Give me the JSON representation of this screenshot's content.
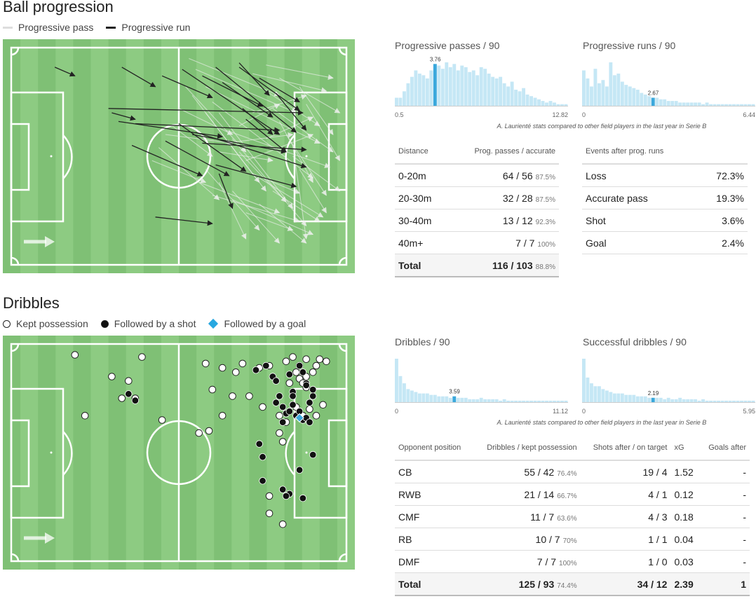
{
  "progression": {
    "title": "Ball progression",
    "legend": [
      {
        "label": "Progressive pass",
        "color": "#dddddd"
      },
      {
        "label": "Progressive run",
        "color": "#222222"
      }
    ]
  },
  "dribbles": {
    "title": "Dribbles",
    "legend": [
      {
        "label": "Kept possession",
        "marker": "white-circle"
      },
      {
        "label": "Followed by a shot",
        "marker": "black-circle"
      },
      {
        "label": "Followed by a goal",
        "marker": "blue-diamond",
        "color": "#27a7e0"
      }
    ]
  },
  "colors": {
    "pitch_light": "#8dcb82",
    "pitch_dark": "#7fc075",
    "hist_bar": "#c5e7f5",
    "hist_highlight": "#3ba8dc"
  },
  "hist_note": "A. Laurienté stats compared to other field players in the last year in Serie B",
  "pass_table": {
    "headers": [
      "Distance",
      "Prog. passes / accurate"
    ],
    "rows": [
      {
        "label": "0-20m",
        "value": "64 / 56",
        "pct": "87.5%"
      },
      {
        "label": "20-30m",
        "value": "32 / 28",
        "pct": "87.5%"
      },
      {
        "label": "30-40m",
        "value": "13 / 12",
        "pct": "92.3%"
      },
      {
        "label": "40m+",
        "value": "7 / 7",
        "pct": "100%"
      }
    ],
    "total": {
      "label": "Total",
      "value": "116 / 103",
      "pct": "88.8%"
    }
  },
  "runs_table": {
    "headers": [
      "Events after prog. runs",
      ""
    ],
    "rows": [
      {
        "label": "Loss",
        "value": "72.3%"
      },
      {
        "label": "Accurate pass",
        "value": "19.3%"
      },
      {
        "label": "Shot",
        "value": "3.6%"
      },
      {
        "label": "Goal",
        "value": "2.4%"
      }
    ]
  },
  "dribble_table": {
    "headers": [
      "Opponent position",
      "Dribbles / kept possession",
      "Shots after / on target",
      "xG",
      "Goals after"
    ],
    "rows": [
      {
        "pos": "CB",
        "drib": "55 / 42",
        "pct": "76.4%",
        "shots": "19 / 4",
        "xg": "1.52",
        "goals": "-"
      },
      {
        "pos": "RWB",
        "drib": "21 / 14",
        "pct": "66.7%",
        "shots": "4 / 1",
        "xg": "0.12",
        "goals": "-"
      },
      {
        "pos": "CMF",
        "drib": "11 / 7",
        "pct": "63.6%",
        "shots": "4 / 3",
        "xg": "0.18",
        "goals": "-"
      },
      {
        "pos": "RB",
        "drib": "10 / 7",
        "pct": "70%",
        "shots": "1 / 1",
        "xg": "0.04",
        "goals": "-"
      },
      {
        "pos": "DMF",
        "drib": "7 / 7",
        "pct": "100%",
        "shots": "1 / 0",
        "xg": "0.03",
        "goals": "-"
      }
    ],
    "total": {
      "pos": "Total",
      "drib": "125 / 93",
      "pct": "74.4%",
      "shots": "34 / 12",
      "xg": "2.39",
      "goals": "1"
    }
  },
  "chart_data": [
    {
      "type": "bar",
      "title": "Progressive passes / 90",
      "min": "0.5",
      "max": "12.82",
      "value": 3.76,
      "value_label": "3.76",
      "values": [
        5,
        5,
        9,
        14,
        18,
        22,
        20,
        19,
        17,
        22,
        26,
        25,
        23,
        27,
        24,
        26,
        22,
        25,
        24,
        21,
        22,
        19,
        24,
        23,
        20,
        18,
        17,
        18,
        14,
        12,
        15,
        10,
        9,
        11,
        7,
        6,
        5,
        4,
        3,
        2,
        3,
        2,
        1,
        1,
        1
      ],
      "highlight_index": 10
    },
    {
      "type": "bar",
      "title": "Progressive runs / 90",
      "min": "0",
      "max": "6.44",
      "value": 2.67,
      "value_label": "2.67",
      "values": [
        22,
        17,
        12,
        23,
        14,
        16,
        12,
        27,
        19,
        20,
        15,
        13,
        12,
        11,
        10,
        8,
        7,
        6,
        5,
        5,
        4,
        4,
        3,
        3,
        3,
        2,
        2,
        2,
        2,
        2,
        2,
        1,
        2,
        1,
        1,
        1,
        1,
        1,
        1,
        1,
        1,
        1,
        1,
        1,
        1
      ],
      "highlight_index": 18
    },
    {
      "type": "bar",
      "title": "Dribbles / 90",
      "min": "0",
      "max": "11.12",
      "value": 3.59,
      "value_label": "3.59",
      "values": [
        30,
        18,
        13,
        9,
        8,
        7,
        6,
        6,
        6,
        5,
        5,
        4,
        4,
        4,
        3,
        4,
        3,
        3,
        3,
        2,
        2,
        2,
        3,
        2,
        2,
        2,
        2,
        1,
        2,
        1,
        1,
        1,
        1,
        1,
        1,
        1,
        1,
        1,
        1,
        1,
        1,
        1,
        1,
        1,
        1
      ],
      "highlight_index": 15
    },
    {
      "type": "bar",
      "title": "Successful dribbles / 90",
      "min": "0",
      "max": "5.95",
      "value": 2.19,
      "value_label": "2.19",
      "values": [
        30,
        17,
        13,
        11,
        11,
        9,
        8,
        7,
        6,
        6,
        6,
        5,
        5,
        5,
        4,
        4,
        4,
        3,
        3,
        3,
        3,
        2,
        3,
        2,
        2,
        3,
        2,
        2,
        2,
        2,
        1,
        2,
        1,
        1,
        1,
        1,
        1,
        1,
        1,
        1,
        1,
        1,
        1,
        1,
        1
      ],
      "highlight_index": 18
    },
    {
      "type": "scatter",
      "title": "Progressive passes and runs",
      "pitch_x_range": [
        0,
        100
      ],
      "pitch_y_range": [
        0,
        100
      ],
      "runs": [
        [
          13,
          9,
          19,
          13
        ],
        [
          33,
          9,
          43,
          18
        ],
        [
          45,
          13,
          60,
          23
        ],
        [
          51,
          10,
          80,
          40
        ],
        [
          57,
          13,
          75,
          27
        ],
        [
          61,
          9,
          85,
          39
        ],
        [
          68,
          9,
          86,
          29
        ],
        [
          30,
          30,
          37,
          33
        ],
        [
          29,
          28,
          87,
          30
        ],
        [
          32,
          34,
          63,
          41
        ],
        [
          37,
          35,
          80,
          38
        ],
        [
          36,
          45,
          57,
          59
        ],
        [
          46,
          43,
          65,
          59
        ],
        [
          50,
          35,
          70,
          57
        ],
        [
          54,
          40,
          82,
          48
        ],
        [
          55,
          39,
          88,
          55
        ],
        [
          57,
          44,
          88,
          47
        ],
        [
          61,
          54,
          85,
          64
        ],
        [
          62,
          58,
          66,
          74
        ],
        [
          43,
          78,
          60,
          81
        ],
        [
          68,
          7,
          77,
          22
        ],
        [
          63,
          16,
          78,
          32
        ],
        [
          69,
          28,
          78,
          40
        ],
        [
          70,
          33,
          82,
          48
        ],
        [
          74,
          14,
          86,
          25
        ],
        [
          79,
          21,
          88,
          38
        ]
      ],
      "passes": [
        [
          53,
          5,
          80,
          22
        ],
        [
          55,
          10,
          85,
          30
        ],
        [
          58,
          18,
          92,
          44
        ],
        [
          60,
          25,
          90,
          60
        ],
        [
          62,
          30,
          84,
          74
        ],
        [
          64,
          38,
          95,
          55
        ],
        [
          66,
          42,
          88,
          82
        ],
        [
          68,
          48,
          82,
          71
        ],
        [
          70,
          52,
          90,
          40
        ],
        [
          72,
          58,
          86,
          67
        ],
        [
          74,
          60,
          93,
          78
        ],
        [
          76,
          20,
          92,
          36
        ],
        [
          78,
          28,
          96,
          48
        ],
        [
          80,
          34,
          90,
          62
        ],
        [
          82,
          40,
          94,
          68
        ],
        [
          84,
          45,
          88,
          88
        ],
        [
          58,
          56,
          74,
          84
        ],
        [
          56,
          62,
          80,
          76
        ],
        [
          60,
          68,
          86,
          80
        ],
        [
          66,
          70,
          90,
          86
        ],
        [
          72,
          12,
          94,
          20
        ],
        [
          76,
          8,
          96,
          14
        ],
        [
          80,
          14,
          98,
          30
        ],
        [
          86,
          18,
          96,
          40
        ],
        [
          88,
          26,
          98,
          52
        ],
        [
          84,
          50,
          98,
          66
        ],
        [
          86,
          56,
          94,
          76
        ],
        [
          78,
          66,
          92,
          80
        ],
        [
          74,
          72,
          88,
          90
        ],
        [
          70,
          76,
          84,
          84
        ],
        [
          62,
          48,
          78,
          52
        ],
        [
          64,
          44,
          84,
          40
        ],
        [
          68,
          36,
          80,
          26
        ],
        [
          72,
          30,
          88,
          22
        ],
        [
          76,
          42,
          90,
          32
        ],
        [
          52,
          18,
          70,
          48
        ],
        [
          54,
          22,
          74,
          62
        ],
        [
          58,
          30,
          76,
          66
        ],
        [
          62,
          62,
          70,
          88
        ],
        [
          66,
          66,
          80,
          90
        ],
        [
          50,
          28,
          66,
          40
        ],
        [
          48,
          36,
          60,
          50
        ],
        [
          46,
          40,
          66,
          44
        ],
        [
          44,
          46,
          62,
          70
        ],
        [
          42,
          52,
          58,
          62
        ]
      ]
    },
    {
      "type": "scatter",
      "title": "Dribbles",
      "pitch_x_range": [
        0,
        100
      ],
      "pitch_y_range": [
        0,
        100
      ],
      "kept": [
        [
          19,
          5
        ],
        [
          39,
          6
        ],
        [
          30,
          15
        ],
        [
          35,
          17
        ],
        [
          33,
          25
        ],
        [
          37,
          25
        ],
        [
          22,
          33
        ],
        [
          45,
          35
        ],
        [
          58,
          9
        ],
        [
          63,
          11
        ],
        [
          69,
          9
        ],
        [
          67,
          13
        ],
        [
          60,
          21
        ],
        [
          66,
          24
        ],
        [
          71,
          24
        ],
        [
          63,
          33
        ],
        [
          56,
          41
        ],
        [
          59,
          40
        ],
        [
          74,
          11
        ],
        [
          77,
          10
        ],
        [
          82,
          8
        ],
        [
          84,
          6
        ],
        [
          88,
          7
        ],
        [
          92,
          7
        ],
        [
          94,
          8
        ],
        [
          86,
          10
        ],
        [
          85,
          13
        ],
        [
          88,
          15
        ],
        [
          90,
          13
        ],
        [
          91,
          10
        ],
        [
          83,
          18
        ],
        [
          86,
          16
        ],
        [
          87,
          18
        ],
        [
          88,
          20
        ],
        [
          75,
          29
        ],
        [
          80,
          33
        ],
        [
          82,
          36
        ],
        [
          85,
          29
        ],
        [
          89,
          30
        ],
        [
          91,
          33
        ],
        [
          93,
          28
        ],
        [
          80,
          41
        ],
        [
          81,
          45
        ],
        [
          77,
          70
        ],
        [
          77,
          78
        ],
        [
          81,
          83
        ],
        [
          87,
          33
        ]
      ],
      "shot": [
        [
          35,
          23
        ],
        [
          37,
          26
        ],
        [
          73,
          12
        ],
        [
          76,
          10
        ],
        [
          78,
          15
        ],
        [
          79,
          17
        ],
        [
          80,
          24
        ],
        [
          79,
          27
        ],
        [
          81,
          29
        ],
        [
          82,
          32
        ],
        [
          83,
          31
        ],
        [
          84,
          28
        ],
        [
          85,
          33
        ],
        [
          86,
          31
        ],
        [
          87,
          35
        ],
        [
          88,
          34
        ],
        [
          89,
          27
        ],
        [
          84,
          22
        ],
        [
          83,
          14
        ],
        [
          87,
          13
        ],
        [
          88,
          18
        ],
        [
          90,
          24
        ],
        [
          90,
          21
        ],
        [
          74,
          46
        ],
        [
          75,
          52
        ],
        [
          75,
          63
        ],
        [
          86,
          58
        ],
        [
          90,
          51
        ],
        [
          81,
          67
        ],
        [
          83,
          69
        ],
        [
          82,
          70
        ],
        [
          87,
          71
        ],
        [
          81,
          36
        ],
        [
          84,
          24
        ],
        [
          88,
          19
        ],
        [
          86,
          10
        ],
        [
          89,
          36
        ]
      ],
      "goal": [
        [
          86,
          34
        ]
      ]
    }
  ]
}
